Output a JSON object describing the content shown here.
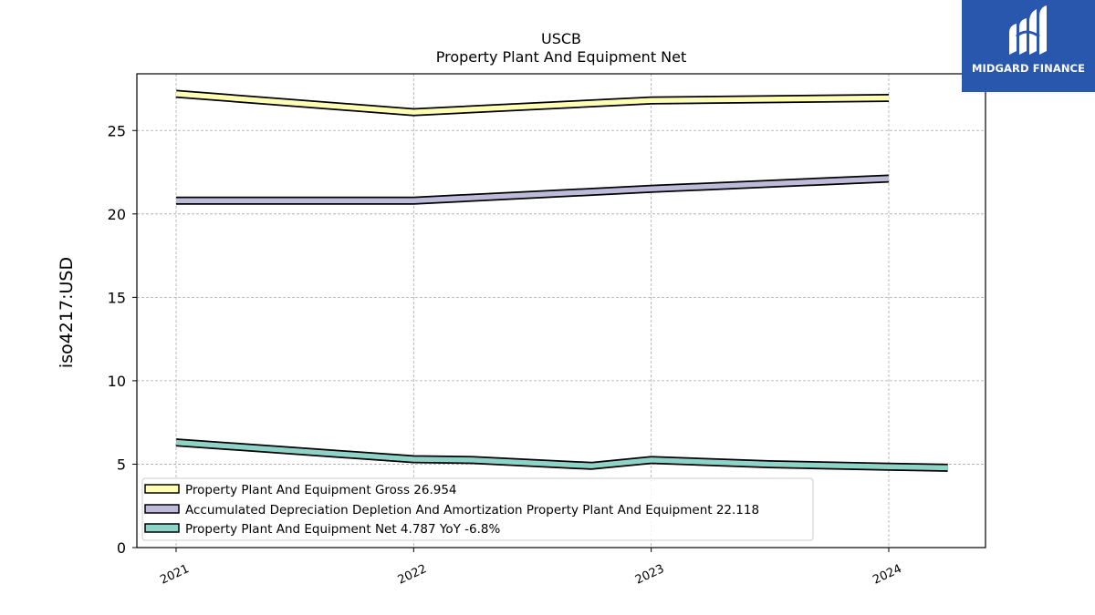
{
  "brand": {
    "name": "MIDGARD FINANCE",
    "background": "#2a57ae",
    "foreground": "#ffffff"
  },
  "chart_data": {
    "type": "line",
    "title": "USCB",
    "subtitle": "Property Plant And Equipment Net",
    "ylabel": "iso4217:USD",
    "xlabel": "",
    "ylim": [
      0,
      28.4
    ],
    "yticks": [
      0,
      5,
      10,
      15,
      20,
      25
    ],
    "x_ticks": [
      "2021",
      "2022",
      "2023",
      "2024"
    ],
    "grid": true,
    "legend_position": "lower-left",
    "series": [
      {
        "name": "Property Plant And Equipment Gross",
        "legend_label": "Property Plant And Equipment Gross  26.954",
        "color": "#ffffb3",
        "points": [
          {
            "date": "2021-01-01",
            "value": 27.2
          },
          {
            "date": "2022-01-01",
            "value": 26.1
          },
          {
            "date": "2023-01-01",
            "value": 26.8
          },
          {
            "date": "2024-01-01",
            "value": 26.954
          }
        ]
      },
      {
        "name": "Accumulated Depreciation Depletion And Amortization Property Plant And Equipment",
        "legend_label": "Accumulated Depreciation Depletion And Amortization Property Plant And Equipment  22.118",
        "color": "#bebada",
        "points": [
          {
            "date": "2021-01-01",
            "value": 20.8
          },
          {
            "date": "2022-01-01",
            "value": 20.8
          },
          {
            "date": "2023-01-01",
            "value": 21.5
          },
          {
            "date": "2024-01-01",
            "value": 22.118
          }
        ]
      },
      {
        "name": "Property Plant And Equipment Net",
        "legend_label": "Property Plant And Equipment Net  4.787 YoY -6.8%",
        "color": "#8dd3c7",
        "points": [
          {
            "date": "2021-01-01",
            "value": 6.3
          },
          {
            "date": "2022-01-01",
            "value": 5.3
          },
          {
            "date": "2022-04-01",
            "value": 5.25
          },
          {
            "date": "2022-10-01",
            "value": 4.9
          },
          {
            "date": "2023-01-01",
            "value": 5.25
          },
          {
            "date": "2023-07-01",
            "value": 5.0
          },
          {
            "date": "2024-01-01",
            "value": 4.85
          },
          {
            "date": "2024-04-01",
            "value": 4.787
          }
        ]
      }
    ]
  }
}
